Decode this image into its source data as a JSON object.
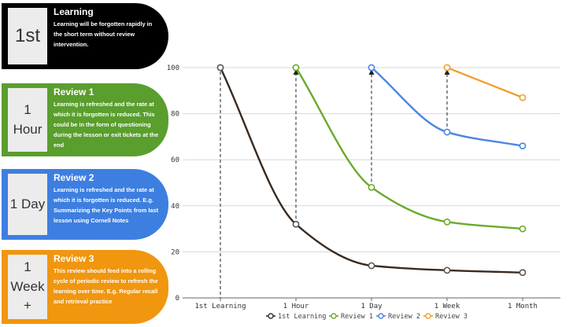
{
  "cards": [
    {
      "badge": "1st",
      "title": "Learning",
      "text": "Learning will be forgotten rapidly in the short term without review intervention.",
      "color": "#000000"
    },
    {
      "badge": "1\nHour",
      "title": "Review 1",
      "text": "Learning is refreshed and the rate at which it is forgotten is reduced. This could be in the form of questioning during the lesson or exit tickets at the end",
      "color": "#5a9e2e"
    },
    {
      "badge": "1 Day",
      "title": "Review 2",
      "text": "Learning is refreshed and the rate at which it is forgotten is reduced.  E.g. Summarizing the Key Points from last lesson using Cornell Notes",
      "color": "#3d7fe0"
    },
    {
      "badge": "1\nWeek\n+",
      "title": "Review 3",
      "text": "This review should feed into a rolling cycle of periodic review to refresh the learning over time.  E.g. Regular recall and retrieval practice",
      "color": "#f0960f"
    }
  ],
  "chart_data": {
    "type": "line",
    "categories": [
      "1st Learning",
      "1 Hour",
      "1 Day",
      "1 Week",
      "1 Month"
    ],
    "y_ticks": [
      "0",
      "20",
      "40",
      "60",
      "80",
      "100"
    ],
    "ylim": [
      0,
      100
    ],
    "grid": true,
    "legend_position": "bottom",
    "series": [
      {
        "name": "1st Learning",
        "color": "#3b2a1e",
        "x": [
          0,
          1,
          2,
          3,
          4
        ],
        "values": [
          100,
          32,
          14,
          12,
          11
        ]
      },
      {
        "name": "Review 1",
        "color": "#6aaa2a",
        "x": [
          1,
          2,
          3,
          4
        ],
        "values": [
          100,
          48,
          33,
          30
        ]
      },
      {
        "name": "Review 2",
        "color": "#4a86e0",
        "x": [
          2,
          3,
          4
        ],
        "values": [
          100,
          72,
          66
        ]
      },
      {
        "name": "Review 3",
        "color": "#f0a030",
        "x": [
          3,
          4
        ],
        "values": [
          100,
          87
        ]
      }
    ],
    "review_arrows": [
      {
        "x": 1,
        "from": 32,
        "to": 100
      },
      {
        "x": 2,
        "from": 48,
        "to": 100
      },
      {
        "x": 3,
        "from": 72,
        "to": 100
      }
    ]
  }
}
